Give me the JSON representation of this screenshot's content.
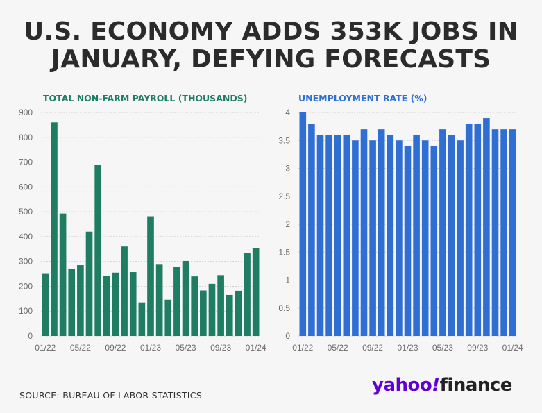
{
  "headline": "U.S. ECONOMY ADDS 353K JOBS IN JANUARY, DEFYING FORECASTS",
  "headline_lines": [
    "U.S. ECONOMY ADDS 353K JOBS IN",
    "JANUARY, DEFYING FORECASTS"
  ],
  "source": "SOURCE: BUREAU OF LABOR STATISTICS",
  "logo": {
    "yahoo": "yahoo",
    "bang": "!",
    "finance": "finance"
  },
  "colors": {
    "payroll": "#1e7d63",
    "unemployment": "#2f6fd4",
    "grid": "#cfcfcf",
    "background": "#f6f6f6"
  },
  "chart_data": [
    {
      "id": "payroll",
      "type": "bar",
      "title": "TOTAL NON-FARM PAYROLL (THOUSANDS)",
      "xlabel": "",
      "ylabel": "",
      "ylim": [
        0,
        900
      ],
      "yticks": [
        0,
        100,
        200,
        300,
        400,
        500,
        600,
        700,
        800,
        900
      ],
      "ytick_labels": [
        "0",
        "100",
        "200",
        "300",
        "400",
        "500",
        "600",
        "700",
        "800",
        "900"
      ],
      "categories": [
        "01/22",
        "02/22",
        "03/22",
        "04/22",
        "05/22",
        "06/22",
        "07/22",
        "08/22",
        "09/22",
        "10/22",
        "11/22",
        "12/22",
        "01/23",
        "02/23",
        "03/23",
        "04/23",
        "05/23",
        "06/23",
        "07/23",
        "08/23",
        "09/23",
        "10/23",
        "11/23",
        "12/23",
        "01/24"
      ],
      "xtick_labels": [
        "01/22",
        "05/22",
        "09/22",
        "01/23",
        "05/23",
        "09/23",
        "01/24"
      ],
      "values": [
        250,
        860,
        493,
        270,
        285,
        420,
        690,
        242,
        255,
        360,
        257,
        135,
        482,
        287,
        146,
        278,
        302,
        240,
        183,
        210,
        245,
        165,
        182,
        333,
        353
      ],
      "grid": true
    },
    {
      "id": "unemployment",
      "type": "bar",
      "title": "UNEMPLOYMENT RATE (%)",
      "xlabel": "",
      "ylabel": "",
      "ylim": [
        0,
        4
      ],
      "yticks": [
        0,
        0.5,
        1,
        1.5,
        2,
        2.5,
        3,
        3.5,
        4
      ],
      "ytick_labels": [
        "0",
        "0.5",
        "1",
        "1.5",
        "2",
        "2.5",
        "3",
        "3.5",
        "4"
      ],
      "categories": [
        "01/22",
        "02/22",
        "03/22",
        "04/22",
        "05/22",
        "06/22",
        "07/22",
        "08/22",
        "09/22",
        "10/22",
        "11/22",
        "12/22",
        "01/23",
        "02/23",
        "03/23",
        "04/23",
        "05/23",
        "06/23",
        "07/23",
        "08/23",
        "09/23",
        "10/23",
        "11/23",
        "12/23",
        "01/24"
      ],
      "xtick_labels": [
        "01/22",
        "05/22",
        "09/22",
        "01/23",
        "05/23",
        "09/23",
        "01/24"
      ],
      "values": [
        4.0,
        3.8,
        3.6,
        3.6,
        3.6,
        3.6,
        3.5,
        3.7,
        3.5,
        3.7,
        3.6,
        3.5,
        3.4,
        3.6,
        3.5,
        3.4,
        3.7,
        3.6,
        3.5,
        3.8,
        3.8,
        3.9,
        3.7,
        3.7,
        3.7
      ],
      "grid": true
    }
  ]
}
